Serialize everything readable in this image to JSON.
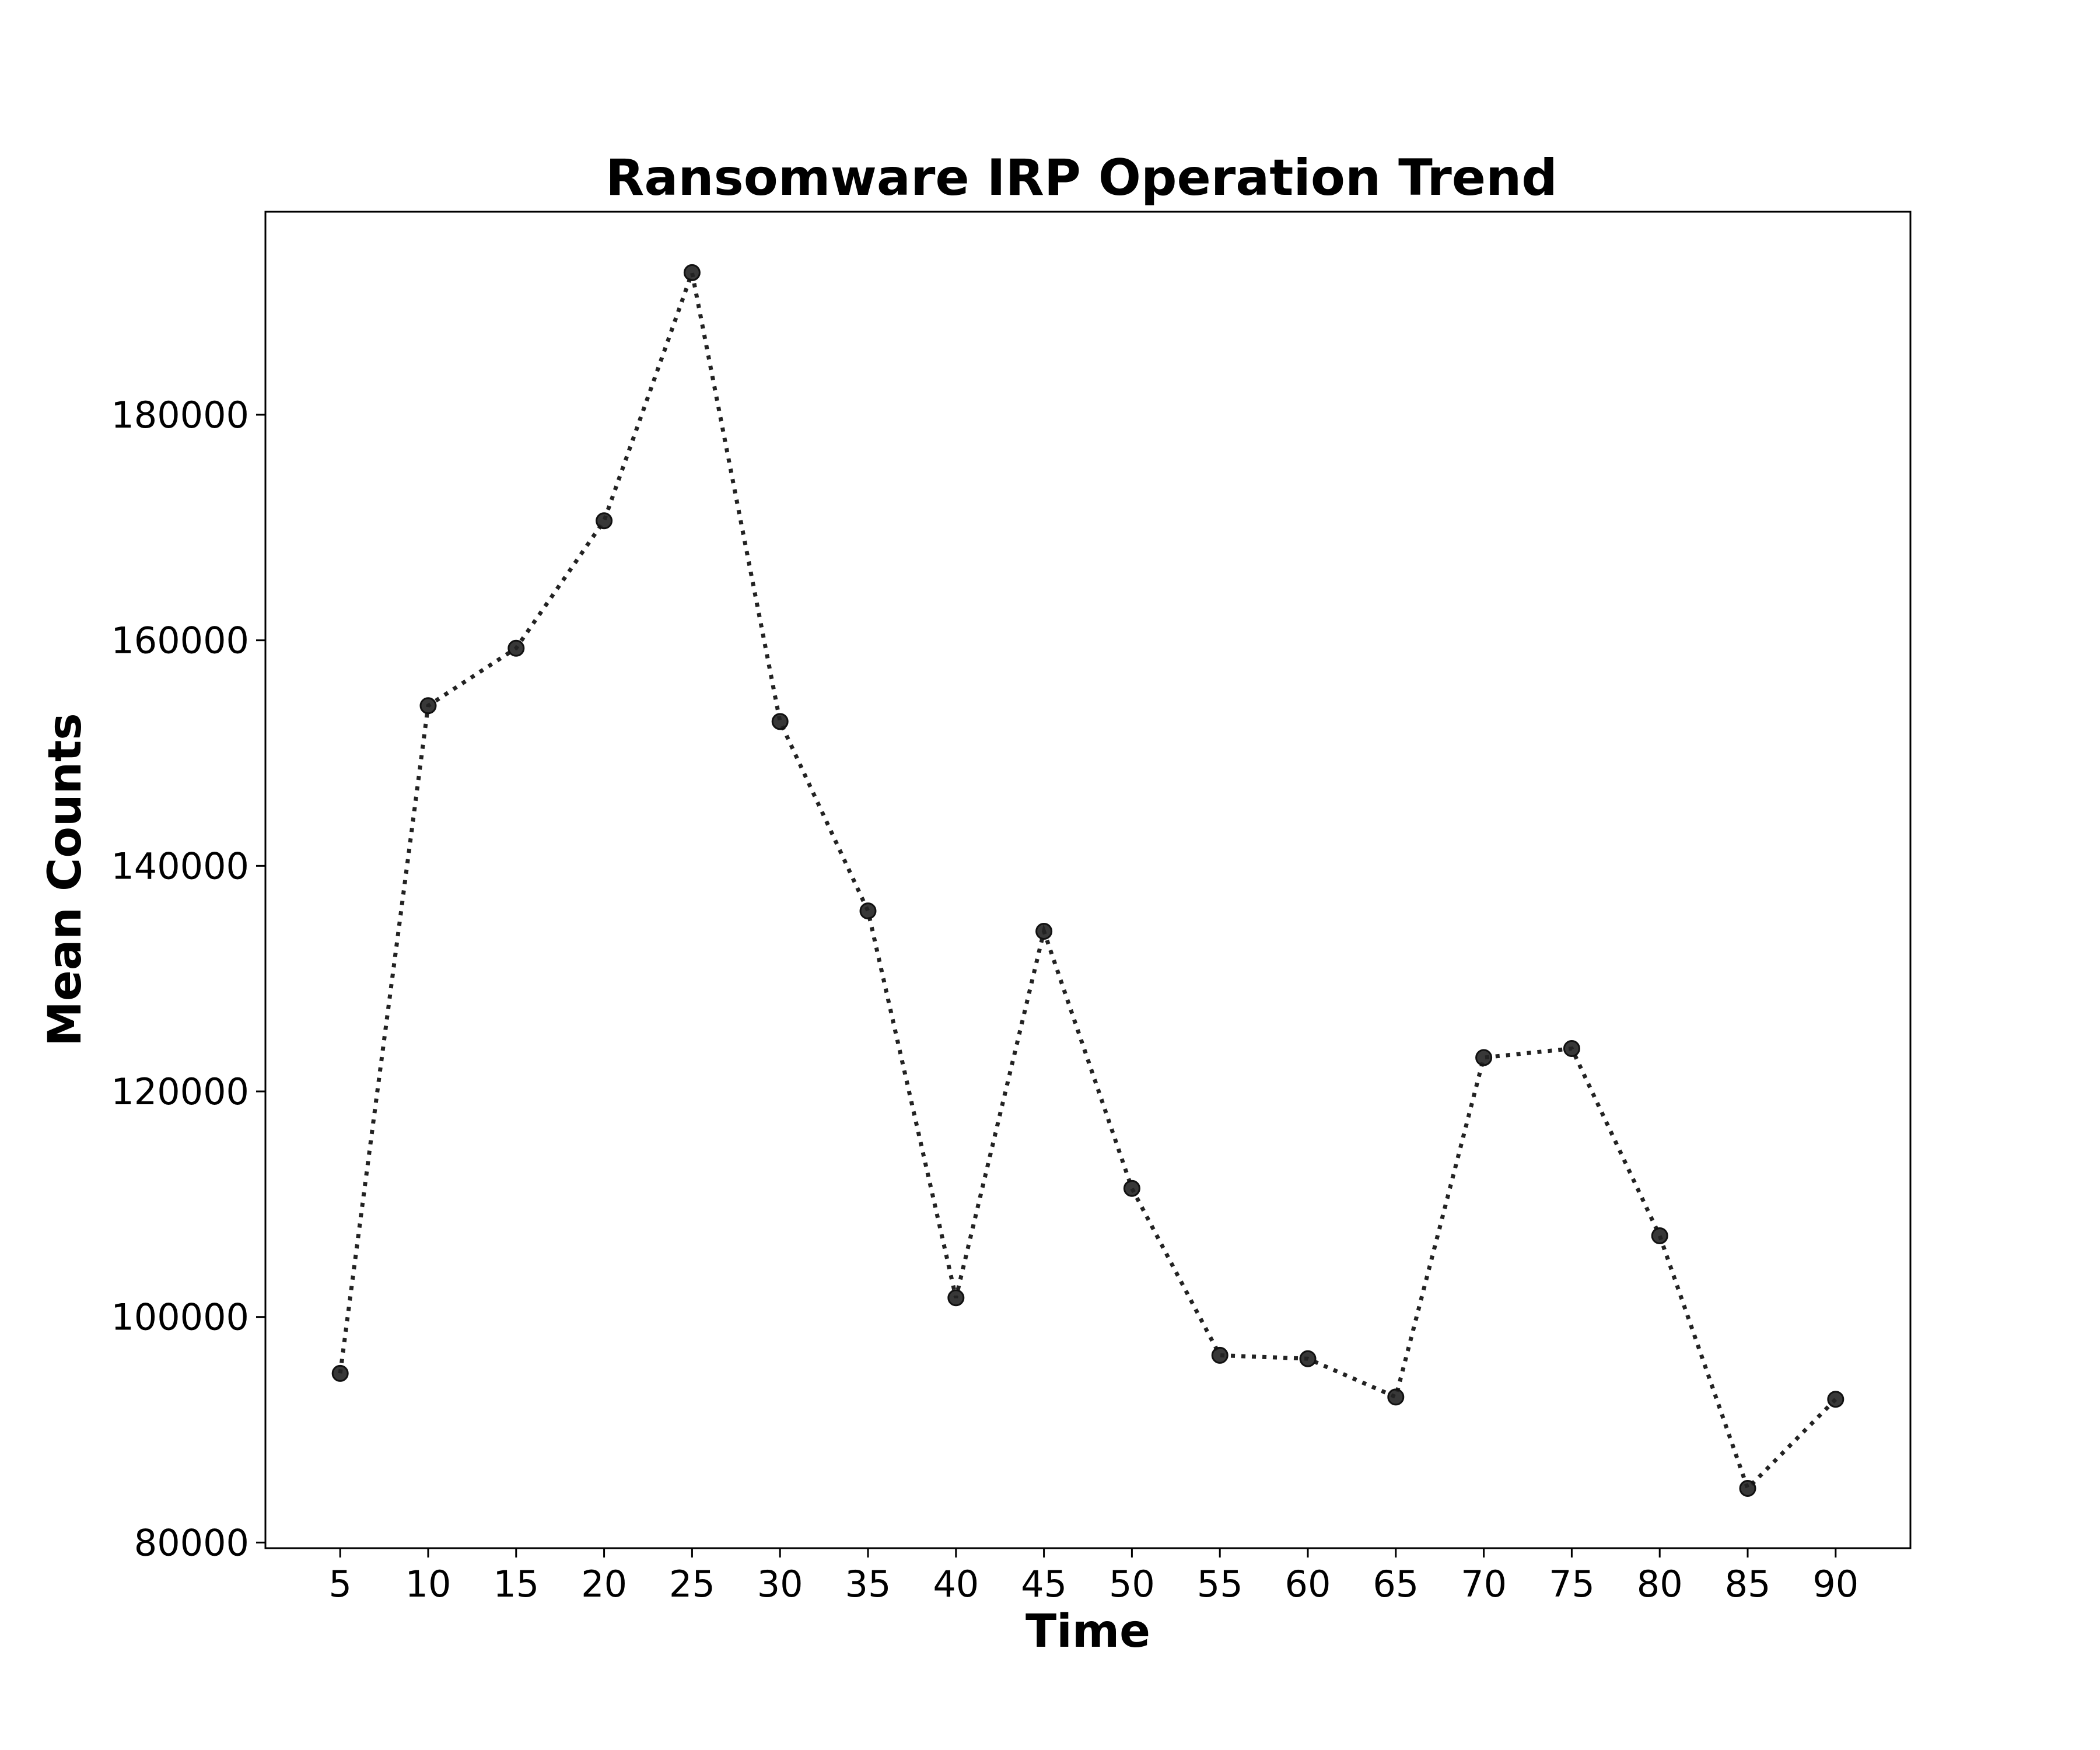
{
  "chart_data": {
    "type": "line",
    "title": "Ransomware IRP Operation Trend",
    "xlabel": "Time",
    "ylabel": "Mean Counts",
    "x": [
      5,
      10,
      15,
      20,
      25,
      30,
      35,
      40,
      45,
      50,
      55,
      60,
      65,
      70,
      75,
      80,
      85,
      90
    ],
    "series": [
      {
        "values": [
          95000,
          154200,
          159300,
          170600,
          192600,
          152800,
          136000,
          101700,
          134200,
          111400,
          96600,
          96300,
          92900,
          123000,
          123800,
          107200,
          84800,
          92700
        ]
      }
    ],
    "xlim": [
      0.75,
      94.25
    ],
    "ylim": [
      79500,
      198000
    ],
    "yticks": [
      80000,
      100000,
      120000,
      140000,
      160000,
      180000
    ],
    "xticks": [
      5,
      10,
      15,
      20,
      25,
      30,
      35,
      40,
      45,
      50,
      55,
      60,
      65,
      70,
      75,
      80,
      85,
      90
    ],
    "line_style": "dotted",
    "marker": "circle",
    "color": "#222222",
    "grid": false,
    "legend": "none"
  }
}
